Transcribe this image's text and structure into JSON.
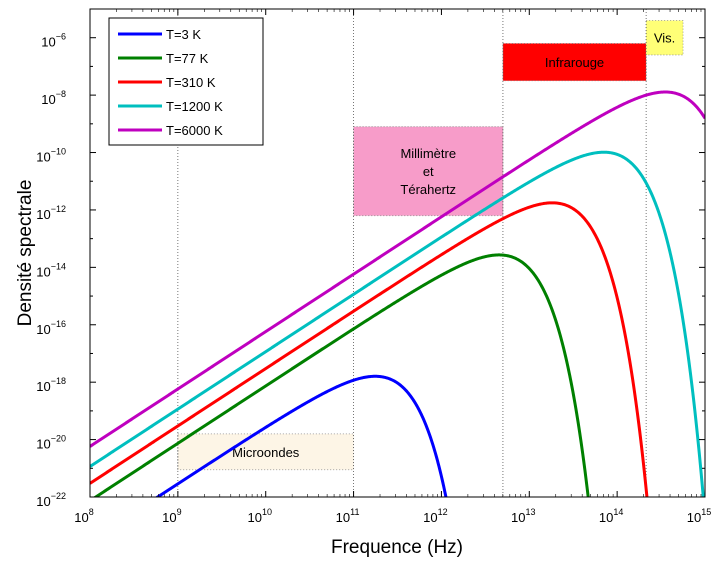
{
  "chart_data": {
    "type": "line",
    "xlabel": "Frequence (Hz)",
    "ylabel": "Densité spectrale",
    "x_scale": "log",
    "y_scale": "log",
    "xlim_exp": [
      8,
      15
    ],
    "ylim_exp": [
      -22,
      -5
    ],
    "x_ticks": [
      {
        "base": "10",
        "exp": "8"
      },
      {
        "base": "10",
        "exp": "9"
      },
      {
        "base": "10",
        "exp": "10"
      },
      {
        "base": "10",
        "exp": "11"
      },
      {
        "base": "10",
        "exp": "12"
      },
      {
        "base": "10",
        "exp": "13"
      },
      {
        "base": "10",
        "exp": "14"
      },
      {
        "base": "10",
        "exp": "15"
      }
    ],
    "y_ticks": [
      {
        "base": "10",
        "exp": "−22"
      },
      {
        "base": "10",
        "exp": "−20"
      },
      {
        "base": "10",
        "exp": "−18"
      },
      {
        "base": "10",
        "exp": "−16"
      },
      {
        "base": "10",
        "exp": "−14"
      },
      {
        "base": "10",
        "exp": "−12"
      },
      {
        "base": "10",
        "exp": "−10"
      },
      {
        "base": "10",
        "exp": "−8"
      },
      {
        "base": "10",
        "exp": "−6"
      }
    ],
    "series": [
      {
        "name": "T=3 K",
        "temperature_K": 3,
        "color": "#0000ff"
      },
      {
        "name": "T=77 K",
        "temperature_K": 77,
        "color": "#008000"
      },
      {
        "name": "T=310 K",
        "temperature_K": 310,
        "color": "#ff0000"
      },
      {
        "name": "T=1200 K",
        "temperature_K": 1200,
        "color": "#00bfbf"
      },
      {
        "name": "T=6000 K",
        "temperature_K": 6000,
        "color": "#bf00bf"
      }
    ],
    "bands": [
      {
        "label_lines": [
          "Microondes"
        ],
        "color": "#fdf5e6",
        "x_exp": [
          9,
          11
        ],
        "y_exp": [
          -21.05,
          -19.8
        ]
      },
      {
        "label_lines": [
          "Millimètre",
          "et",
          "Térahertz"
        ],
        "color": "#f79cc9",
        "x_exp": [
          11,
          12.7
        ],
        "y_exp": [
          -12.2,
          -9.1
        ]
      },
      {
        "label_lines": [
          "Infrarouge"
        ],
        "color": "#ff0000",
        "x_exp": [
          12.7,
          14.33
        ],
        "y_exp": [
          -7.5,
          -6.2
        ]
      },
      {
        "label_lines": [
          "Vis."
        ],
        "color": "#ffff77",
        "x_exp": [
          14.33,
          14.75
        ],
        "y_exp": [
          -6.6,
          -5.4
        ]
      }
    ],
    "vlines_exp": [
      9,
      11,
      12.7,
      14.33
    ],
    "legend_position": "top-left",
    "grid": false
  }
}
